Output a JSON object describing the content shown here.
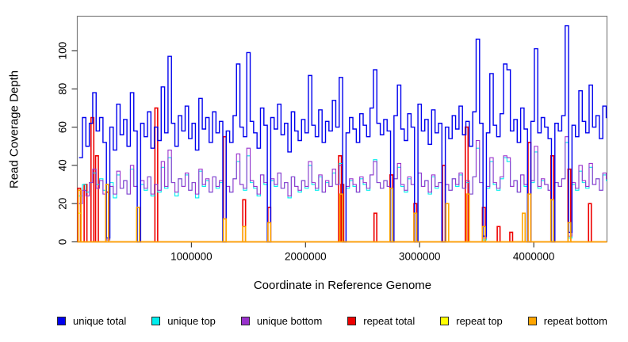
{
  "chart_data": {
    "type": "line",
    "subtype": "step",
    "title": "",
    "xlabel": "Coordinate in Reference Genome",
    "ylabel": "Read Coverage Depth",
    "xlim": [
      1,
      4641652
    ],
    "ylim": [
      0,
      118
    ],
    "grid": false,
    "legend_position": "bottom",
    "frame_color": "#808080",
    "tick_color": "#404040",
    "text_color": "#000000",
    "x_ticks": [
      {
        "value": 1000000,
        "label": "1000000"
      },
      {
        "value": 2000000,
        "label": "2000000"
      },
      {
        "value": 3000000,
        "label": "3000000"
      },
      {
        "value": 4000000,
        "label": "4000000"
      }
    ],
    "y_ticks": [
      {
        "value": 0,
        "label": "0"
      },
      {
        "value": 20,
        "label": "20"
      },
      {
        "value": 40,
        "label": "40"
      },
      {
        "value": 60,
        "label": "60"
      },
      {
        "value": 80,
        "label": "80"
      },
      {
        "value": 100,
        "label": "100"
      }
    ],
    "x_start": 15000,
    "x_step": 30000,
    "series": [
      {
        "name": "unique total",
        "color": "#0000EE",
        "width": 1.4,
        "values": [
          44,
          65,
          50,
          62,
          78,
          58,
          65,
          52,
          2,
          60,
          48,
          72,
          56,
          64,
          50,
          78,
          58,
          0,
          62,
          55,
          68,
          49,
          60,
          53,
          81,
          57,
          97,
          62,
          50,
          66,
          58,
          71,
          54,
          62,
          48,
          75,
          59,
          65,
          52,
          68,
          57,
          63,
          0,
          58,
          52,
          66,
          93,
          60,
          55,
          99,
          63,
          57,
          49,
          70,
          61,
          0,
          65,
          59,
          72,
          56,
          62,
          47,
          68,
          58,
          53,
          64,
          57,
          87,
          61,
          55,
          69,
          52,
          63,
          58,
          74,
          60,
          86,
          0,
          57,
          65,
          59,
          52,
          67,
          61,
          55,
          70,
          90,
          62,
          56,
          64,
          58,
          0,
          66,
          82,
          59,
          53,
          67,
          60,
          0,
          72,
          58,
          64,
          51,
          69,
          57,
          62,
          0,
          60,
          54,
          66,
          59,
          71,
          56,
          63,
          50,
          68,
          106,
          62,
          3,
          57,
          88,
          61,
          55,
          67,
          93,
          90,
          58,
          64,
          52,
          70,
          59,
          0,
          63,
          101,
          57,
          65,
          60,
          54,
          0,
          62,
          58,
          66,
          113,
          5,
          61,
          55,
          79,
          63,
          57,
          82,
          60,
          66,
          54,
          71,
          65
        ]
      },
      {
        "name": "unique top",
        "color": "#00EEEE",
        "width": 1.1,
        "values": [
          24,
          30,
          26,
          31,
          36,
          30,
          33,
          27,
          1,
          31,
          23,
          35,
          28,
          32,
          25,
          38,
          29,
          0,
          30,
          27,
          34,
          24,
          30,
          26,
          39,
          28,
          44,
          31,
          24,
          33,
          29,
          35,
          27,
          31,
          23,
          37,
          29,
          32,
          26,
          34,
          28,
          31,
          0,
          29,
          26,
          33,
          42,
          30,
          27,
          45,
          31,
          28,
          24,
          35,
          30,
          0,
          32,
          29,
          36,
          28,
          31,
          23,
          34,
          29,
          26,
          32,
          28,
          40,
          30,
          27,
          34,
          26,
          31,
          29,
          36,
          30,
          41,
          0,
          28,
          32,
          29,
          26,
          33,
          30,
          27,
          35,
          43,
          31,
          28,
          32,
          29,
          0,
          33,
          39,
          29,
          26,
          33,
          30,
          0,
          36,
          29,
          32,
          25,
          34,
          28,
          31,
          0,
          30,
          27,
          33,
          29,
          35,
          28,
          31,
          25,
          34,
          49,
          31,
          1,
          28,
          42,
          30,
          27,
          33,
          44,
          42,
          29,
          32,
          26,
          35,
          29,
          0,
          31,
          47,
          28,
          32,
          30,
          27,
          0,
          31,
          29,
          33,
          52,
          2,
          30,
          27,
          37,
          31,
          28,
          39,
          30,
          33,
          27,
          35,
          32
        ]
      },
      {
        "name": "unique bottom",
        "color": "#9932CC",
        "width": 1.1,
        "values": [
          20,
          27,
          24,
          31,
          38,
          28,
          32,
          25,
          1,
          29,
          25,
          37,
          28,
          32,
          25,
          40,
          29,
          0,
          32,
          28,
          34,
          25,
          30,
          27,
          42,
          29,
          48,
          31,
          26,
          33,
          29,
          36,
          27,
          31,
          25,
          38,
          30,
          33,
          26,
          34,
          29,
          32,
          0,
          29,
          26,
          33,
          46,
          30,
          28,
          49,
          32,
          29,
          25,
          35,
          31,
          0,
          33,
          30,
          36,
          28,
          31,
          24,
          34,
          29,
          27,
          32,
          29,
          42,
          31,
          28,
          35,
          26,
          32,
          29,
          38,
          30,
          40,
          0,
          29,
          33,
          30,
          26,
          34,
          31,
          28,
          35,
          42,
          31,
          28,
          32,
          29,
          0,
          33,
          41,
          30,
          27,
          34,
          30,
          0,
          36,
          29,
          32,
          26,
          35,
          29,
          31,
          0,
          30,
          27,
          33,
          30,
          36,
          28,
          32,
          25,
          34,
          53,
          31,
          2,
          29,
          44,
          31,
          28,
          34,
          45,
          44,
          29,
          32,
          26,
          35,
          30,
          0,
          32,
          50,
          29,
          33,
          30,
          27,
          0,
          31,
          29,
          33,
          55,
          3,
          31,
          28,
          40,
          32,
          29,
          41,
          30,
          33,
          27,
          36,
          33
        ]
      },
      {
        "name": "repeat total",
        "color": "#EE0000",
        "width": 1.6,
        "baseline": 0,
        "spikes": [
          [
            4000,
            28
          ],
          [
            60000,
            30
          ],
          [
            120000,
            65
          ],
          [
            160000,
            45
          ],
          [
            250000,
            26
          ],
          [
            680000,
            70
          ],
          [
            1280000,
            55
          ],
          [
            1450000,
            22
          ],
          [
            1670000,
            18
          ],
          [
            2290000,
            45
          ],
          [
            2310000,
            30
          ],
          [
            2600000,
            15
          ],
          [
            2740000,
            35
          ],
          [
            2950000,
            20
          ],
          [
            3200000,
            40
          ],
          [
            3400000,
            60
          ],
          [
            3550000,
            18
          ],
          [
            3680000,
            8
          ],
          [
            3790000,
            5
          ],
          [
            3950000,
            52
          ],
          [
            4150000,
            45
          ],
          [
            4300000,
            38
          ],
          [
            4480000,
            20
          ]
        ]
      },
      {
        "name": "repeat top",
        "color": "#FFFF00",
        "width": 1.2,
        "baseline": 0,
        "spikes": [
          [
            8000,
            15
          ]
        ]
      },
      {
        "name": "repeat bottom",
        "color": "#FFA500",
        "width": 1.6,
        "baseline": 0,
        "spikes": [
          [
            8000,
            27
          ],
          [
            250000,
            30
          ],
          [
            520000,
            18
          ],
          [
            1280000,
            12
          ],
          [
            1450000,
            8
          ],
          [
            1670000,
            10
          ],
          [
            2300000,
            25
          ],
          [
            2740000,
            28
          ],
          [
            2950000,
            15
          ],
          [
            3230000,
            20
          ],
          [
            3410000,
            25
          ],
          [
            3550000,
            8
          ],
          [
            3900000,
            15
          ],
          [
            3950000,
            25
          ],
          [
            4150000,
            22
          ],
          [
            4300000,
            10
          ]
        ]
      }
    ]
  }
}
